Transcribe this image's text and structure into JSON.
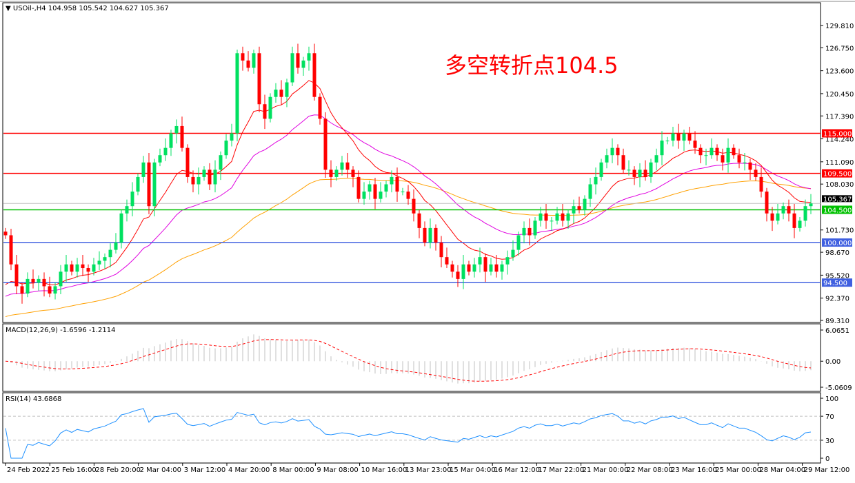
{
  "header": {
    "title": "▼ USOil-,H4  104.958 105.542 104.627 105.367"
  },
  "annotation": "多空转折点104.5",
  "macd_label": "MACD(12,26,9) -1.6596 -1.2114",
  "rsi_label": "RSI(14) 43.6868",
  "chart_data": {
    "type": "candlestick",
    "symbol": "USOil-",
    "timeframe": "H4",
    "ylim": [
      89.31,
      129.81
    ],
    "y_ticks": [
      "129.810",
      "126.750",
      "123.600",
      "120.450",
      "117.390",
      "114.240",
      "111.090",
      "108.030",
      "101.730",
      "98.670",
      "95.520",
      "92.370",
      "89.310"
    ],
    "x_ticks": [
      "24 Feb 2022",
      "25 Feb 16:00",
      "28 Feb 20:00",
      "2 Mar 04:00",
      "3 Mar 12:00",
      "4 Mar 20:00",
      "8 Mar 00:00",
      "9 Mar 08:00",
      "10 Mar 16:00",
      "13 Mar 23:00",
      "15 Mar 04:00",
      "16 Mar 12:00",
      "17 Mar 22:00",
      "21 Mar 00:00",
      "22 Mar 08:00",
      "23 Mar 16:00",
      "25 Mar 00:00",
      "28 Mar 04:00",
      "29 Mar 12:00"
    ],
    "close": [
      101,
      97,
      94,
      93,
      95,
      94.5,
      95,
      94,
      93,
      94,
      96,
      97,
      96,
      97,
      96.5,
      96,
      97,
      97.5,
      98,
      99,
      100,
      104,
      105,
      107,
      109,
      111,
      105,
      111,
      112,
      113,
      115,
      116,
      113,
      109,
      108,
      109,
      110,
      108,
      110,
      112,
      114,
      115,
      126,
      125,
      124,
      126,
      119,
      117,
      120,
      121,
      120,
      122,
      126,
      124,
      125,
      126,
      120,
      117,
      110,
      109,
      110,
      111,
      110,
      109,
      106,
      107,
      108,
      106,
      107,
      108,
      109,
      107,
      107,
      106,
      104,
      102,
      100,
      102,
      100,
      98,
      97,
      96,
      95,
      97,
      96,
      97,
      98,
      96,
      97,
      96,
      97,
      98,
      99,
      101,
      102,
      101,
      103,
      104,
      103,
      103,
      104,
      103,
      104,
      105,
      104.5,
      106,
      108,
      109,
      111,
      112,
      113,
      112,
      110,
      110,
      109,
      110,
      109,
      111,
      112,
      114,
      114,
      115,
      114,
      115,
      114,
      113,
      112,
      112,
      113,
      112,
      111,
      113,
      112,
      111,
      111,
      110,
      109,
      107,
      104,
      103,
      104,
      105,
      104,
      102,
      103,
      105,
      105.367
    ],
    "levels": [
      {
        "value": 115.0,
        "label": "115.000",
        "color": "#ff0000"
      },
      {
        "value": 109.5,
        "label": "109.500",
        "color": "#ff0000"
      },
      {
        "value": 104.5,
        "label": "104.500",
        "color": "#00c000"
      },
      {
        "value": 100.0,
        "label": "100.000",
        "color": "#4060e0"
      },
      {
        "value": 94.5,
        "label": "94.500",
        "color": "#4060e0"
      }
    ],
    "current_price": {
      "value": 105.367,
      "label": "105.367"
    },
    "colors": {
      "up": "#00e060",
      "down": "#ff0000",
      "ma_fast": "#ff0000",
      "ma_mid": "#e000e0",
      "ma_slow": "#ffa000",
      "rsi": "#1e90ff"
    },
    "macd": {
      "ticks": [
        "6.0651",
        "0.00",
        "-5.0609"
      ],
      "ylim": [
        -5.0609,
        6.0651
      ]
    },
    "rsi": {
      "ticks": [
        "100",
        "70",
        "30",
        "0"
      ],
      "levels": [
        70,
        30
      ]
    }
  }
}
